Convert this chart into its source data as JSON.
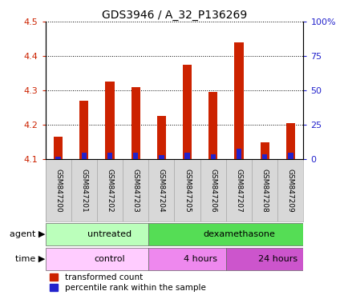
{
  "title": "GDS3946 / A_32_P136269",
  "samples": [
    "GSM847200",
    "GSM847201",
    "GSM847202",
    "GSM847203",
    "GSM847204",
    "GSM847205",
    "GSM847206",
    "GSM847207",
    "GSM847208",
    "GSM847209"
  ],
  "transformed_count": [
    4.165,
    4.27,
    4.325,
    4.31,
    4.225,
    4.375,
    4.295,
    4.44,
    4.15,
    4.205
  ],
  "percentile_rank": [
    2,
    5,
    5,
    5,
    3,
    5,
    4,
    8,
    4,
    5
  ],
  "ymin": 4.1,
  "ymax": 4.5,
  "yticks": [
    4.1,
    4.2,
    4.3,
    4.4,
    4.5
  ],
  "right_yticks": [
    0,
    25,
    50,
    75,
    100
  ],
  "bar_color": "#cc2200",
  "percentile_color": "#2222cc",
  "agent_groups": [
    {
      "label": "untreated",
      "start": 0,
      "end": 4,
      "color": "#bbffbb"
    },
    {
      "label": "dexamethasone",
      "start": 4,
      "end": 10,
      "color": "#55dd55"
    }
  ],
  "time_groups": [
    {
      "label": "control",
      "start": 0,
      "end": 4,
      "color": "#ffccff"
    },
    {
      "label": "4 hours",
      "start": 4,
      "end": 7,
      "color": "#ee88ee"
    },
    {
      "label": "24 hours",
      "start": 7,
      "end": 10,
      "color": "#cc55cc"
    }
  ],
  "tick_label_color": "#cc2200",
  "right_tick_color": "#2222cc",
  "background_color": "#ffffff",
  "bar_width": 0.35,
  "percentile_bar_width": 0.2,
  "agent_label": "agent",
  "time_label": "time"
}
